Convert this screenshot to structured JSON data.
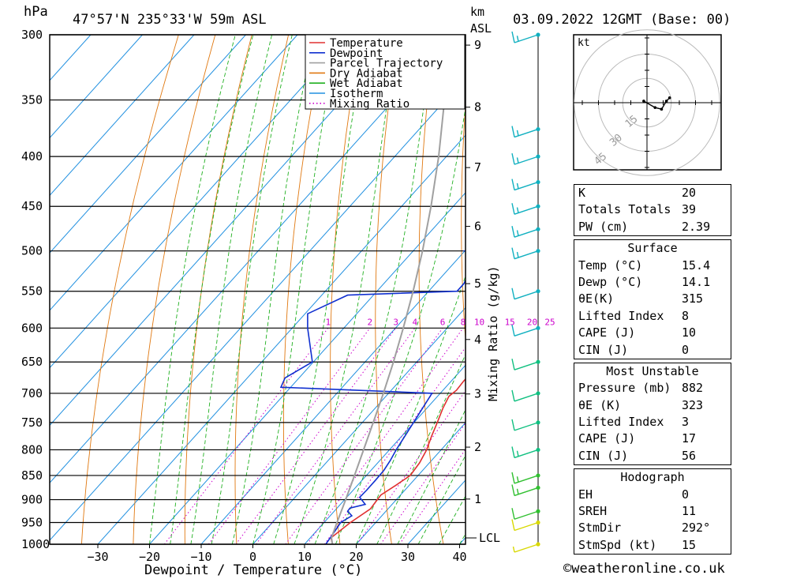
{
  "header": {
    "hpa_label": "hPa",
    "location": "47°57'N  235°33'W  59m  ASL",
    "km_label": "km",
    "asl_label": "ASL",
    "datetime": "03.09.2022  12GMT  (Base: 00)"
  },
  "x_axis_title": "Dewpoint / Temperature (°C)",
  "mixing_ratio_axis_title": "Mixing Ratio (g/kg)",
  "lcl_label": "LCL",
  "hodograph": {
    "unit_label": "kt",
    "ring_labels": [
      "15",
      "30",
      "45"
    ]
  },
  "legend": {
    "items": [
      {
        "label": "Temperature",
        "color": "#e03030",
        "style": "solid"
      },
      {
        "label": "Dewpoint",
        "color": "#1030d0",
        "style": "solid"
      },
      {
        "label": "Parcel Trajectory",
        "color": "#a0a0a0",
        "style": "solid"
      },
      {
        "label": "Dry Adiabat",
        "color": "#e07810",
        "style": "solid"
      },
      {
        "label": "Wet Adiabat",
        "color": "#20b020",
        "style": "solid"
      },
      {
        "label": "Isotherm",
        "color": "#2090e0",
        "style": "solid"
      },
      {
        "label": "Mixing Ratio",
        "color": "#cc00cc",
        "style": "dotted"
      }
    ]
  },
  "chart_data": {
    "type": "line",
    "title": "",
    "xlabel": "Dewpoint / Temperature (°C)",
    "ylabel": "hPa",
    "x_ticks": [
      -30,
      -20,
      -10,
      0,
      10,
      20,
      30,
      40
    ],
    "pressure_ticks": [
      300,
      350,
      400,
      450,
      500,
      550,
      600,
      650,
      700,
      750,
      800,
      850,
      900,
      950,
      1000
    ],
    "km_ticks": [
      1,
      2,
      3,
      4,
      5,
      6,
      7,
      8,
      9
    ],
    "mixing_ratio_labels": [
      1,
      2,
      3,
      4,
      6,
      8,
      10,
      15,
      20,
      25
    ],
    "series": [
      {
        "name": "Temperature",
        "pressure": [
          1000,
          985,
          950,
          920,
          905,
          890,
          870,
          850,
          825,
          800,
          775,
          750,
          725,
          705,
          700,
          695,
          680,
          660,
          640,
          620,
          600,
          580,
          560,
          550,
          540,
          520,
          500,
          480,
          470,
          450,
          430,
          400,
          370,
          350,
          330,
          300
        ],
        "values": [
          15.4,
          14.0,
          15.1,
          16.6,
          16.4,
          16.2,
          17.4,
          18.5,
          18.1,
          17.2,
          15.8,
          14.5,
          13.1,
          12.2,
          12.4,
          12.6,
          12.4,
          12.5,
          12.0,
          11.5,
          11.1,
          10.7,
          10.2,
          10.2,
          9.5,
          7.4,
          5.6,
          4.0,
          2.7,
          2.0,
          0.5,
          -2.3,
          -5.6,
          -8.2,
          -10.6,
          -15.0
        ]
      },
      {
        "name": "Dewpoint",
        "pressure": [
          1000,
          970,
          950,
          935,
          925,
          918,
          910,
          895,
          880,
          860,
          840,
          820,
          800,
          750,
          700,
          690,
          675,
          650,
          600,
          580,
          555,
          550,
          540,
          525,
          515,
          505,
          500,
          495,
          485,
          470,
          450,
          430,
          400,
          380,
          350,
          330,
          300
        ],
        "values": [
          14.1,
          13.6,
          13.2,
          14.2,
          12.6,
          12.5,
          14.8,
          12.5,
          12.6,
          12.6,
          12.5,
          12.0,
          11.3,
          9.9,
          8.4,
          -21.9,
          -22.7,
          -20.2,
          -27.0,
          -29.5,
          -25.0,
          -4.5,
          -4.5,
          -5.5,
          -6.0,
          -7.2,
          -10.0,
          -5.5,
          -6.0,
          -4.0,
          -3.0,
          -4.8,
          -5.9,
          -7.0,
          -8.6,
          -12.0,
          -17.2
        ]
      },
      {
        "name": "Parcel Trajectory",
        "pressure": [
          1000,
          985,
          950,
          900,
          850,
          800,
          750,
          700,
          650,
          600,
          550,
          500,
          450,
          400,
          350,
          300
        ],
        "values": [
          15.4,
          14.1,
          12.5,
          10.2,
          7.7,
          5.0,
          2.1,
          -1.0,
          -4.5,
          -8.5,
          -13.0,
          -18.2,
          -24.3,
          -31.5,
          -40.2,
          -50.5
        ]
      }
    ],
    "wind_barbs": [
      {
        "pressure": 1000,
        "speed_kt": 5
      },
      {
        "pressure": 950,
        "speed_kt": 10
      },
      {
        "pressure": 925,
        "speed_kt": 10
      },
      {
        "pressure": 875,
        "speed_kt": 15
      },
      {
        "pressure": 850,
        "speed_kt": 15
      },
      {
        "pressure": 800,
        "speed_kt": 15
      },
      {
        "pressure": 750,
        "speed_kt": 10
      },
      {
        "pressure": 700,
        "speed_kt": 10
      },
      {
        "pressure": 650,
        "speed_kt": 10
      },
      {
        "pressure": 600,
        "speed_kt": 10
      },
      {
        "pressure": 550,
        "speed_kt": 10
      },
      {
        "pressure": 500,
        "speed_kt": 15
      },
      {
        "pressure": 475,
        "speed_kt": 15
      },
      {
        "pressure": 450,
        "speed_kt": 15
      },
      {
        "pressure": 425,
        "speed_kt": 15
      },
      {
        "pressure": 400,
        "speed_kt": 15
      },
      {
        "pressure": 375,
        "speed_kt": 15
      },
      {
        "pressure": 300,
        "speed_kt": 15
      }
    ],
    "hodograph_points_kt": [
      [
        -2,
        1
      ],
      [
        5,
        -3
      ],
      [
        9,
        -4
      ],
      [
        12,
        1
      ],
      [
        14,
        3
      ]
    ]
  },
  "indices": {
    "general": [
      {
        "label": "K",
        "value": "20"
      },
      {
        "label": "Totals Totals",
        "value": "39"
      },
      {
        "label": "PW (cm)",
        "value": "2.39"
      }
    ],
    "surface": {
      "title": "Surface",
      "rows": [
        {
          "label": "Temp (°C)",
          "value": "15.4"
        },
        {
          "label": "Dewp (°C)",
          "value": "14.1"
        },
        {
          "label": "θE(K)",
          "value": "315"
        },
        {
          "label": "Lifted Index",
          "value": "8"
        },
        {
          "label": "CAPE (J)",
          "value": "10"
        },
        {
          "label": "CIN (J)",
          "value": "0"
        }
      ]
    },
    "most_unstable": {
      "title": "Most Unstable",
      "rows": [
        {
          "label": "Pressure (mb)",
          "value": "882"
        },
        {
          "label": "θE (K)",
          "value": "323"
        },
        {
          "label": "Lifted Index",
          "value": "3"
        },
        {
          "label": "CAPE (J)",
          "value": "17"
        },
        {
          "label": "CIN (J)",
          "value": "56"
        }
      ]
    },
    "hodograph": {
      "title": "Hodograph",
      "rows": [
        {
          "label": "EH",
          "value": "0"
        },
        {
          "label": "SREH",
          "value": "11"
        },
        {
          "label": "StmDir",
          "value": "292°"
        },
        {
          "label": "StmSpd (kt)",
          "value": "15"
        }
      ]
    }
  },
  "credit": "©weatheronline.co.uk"
}
